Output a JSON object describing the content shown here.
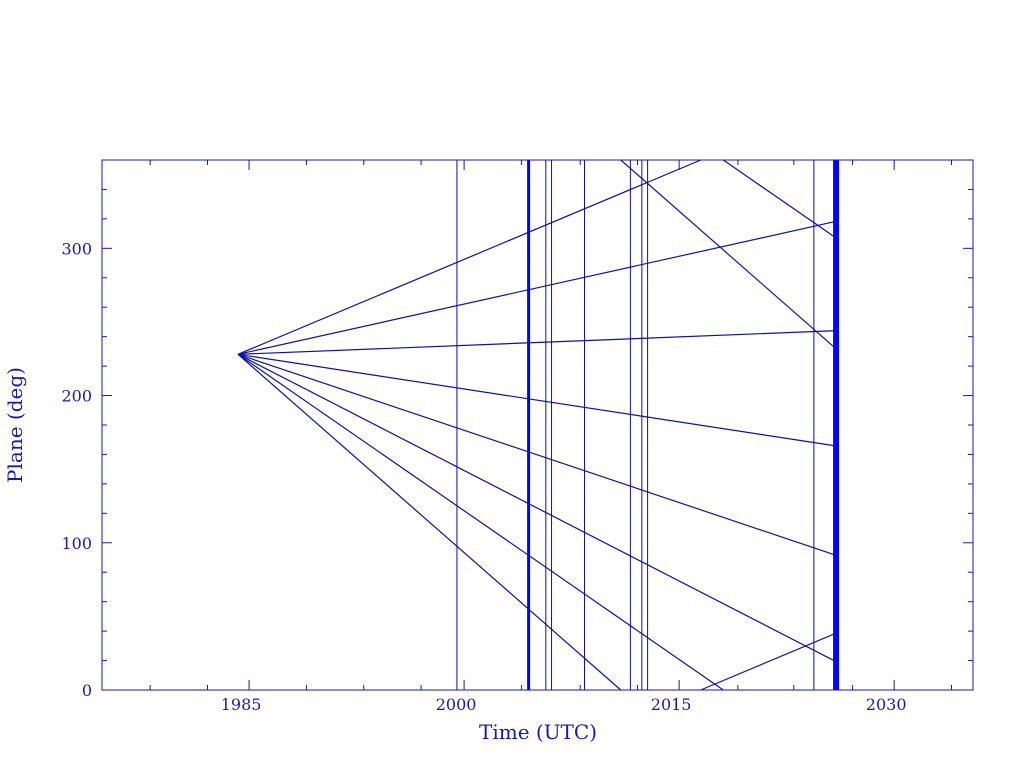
{
  "chart_data": {
    "type": "line",
    "title": "",
    "xlabel": "Time (UTC)",
    "ylabel": "Plane (deg)",
    "xlim": [
      1974.74,
      2035.5
    ],
    "ylim": [
      0,
      360
    ],
    "wrap": 360,
    "x_ticks": [
      1985,
      2000,
      2015,
      2030
    ],
    "x_tick_labels": [
      "1985",
      "2000",
      "2015",
      "2030"
    ],
    "x_minor_ticks": [
      1978.1,
      1982.1,
      1989.0,
      1993.0,
      1997.0,
      2004.0,
      2008.1,
      2012.1,
      2019.1,
      2023.0,
      2027.1,
      2034.0
    ],
    "y_ticks": [
      0,
      100,
      200,
      300
    ],
    "y_tick_labels": [
      "0",
      "100",
      "200",
      "300"
    ],
    "y_minor_step": 20,
    "grid": false,
    "colors": {
      "axis": "#1a1aa8",
      "line": "#1010a0",
      "thick": "#0000ff"
    },
    "series": [
      {
        "x": [
          1984.23,
          2025.8
        ],
        "y": [
          228,
          398
        ]
      },
      {
        "x": [
          1984.23,
          2025.8
        ],
        "y": [
          228,
          318
        ]
      },
      {
        "x": [
          1984.23,
          2025.8
        ],
        "y": [
          228,
          244
        ]
      },
      {
        "x": [
          1984.23,
          2025.8
        ],
        "y": [
          228,
          166
        ]
      },
      {
        "x": [
          1984.23,
          2025.8
        ],
        "y": [
          228,
          92
        ]
      },
      {
        "x": [
          1984.23,
          2025.8
        ],
        "y": [
          228,
          20
        ]
      },
      {
        "x": [
          1984.23,
          2025.8
        ],
        "y": [
          228,
          -52
        ]
      },
      {
        "x": [
          1984.23,
          2025.8
        ],
        "y": [
          228,
          -127
        ]
      }
    ],
    "vertical_lines": [
      {
        "x": 1999.5,
        "thick": false
      },
      {
        "x": 2004.5,
        "thick": true
      },
      {
        "x": 2005.7,
        "thick": false
      },
      {
        "x": 2006.1,
        "thick": false
      },
      {
        "x": 2008.4,
        "thick": false
      },
      {
        "x": 2011.6,
        "thick": false
      },
      {
        "x": 2012.4,
        "thick": false
      },
      {
        "x": 2012.8,
        "thick": false
      },
      {
        "x": 2024.4,
        "thick": false
      },
      {
        "x": 2025.95,
        "thick": true,
        "heavy": true
      }
    ]
  }
}
